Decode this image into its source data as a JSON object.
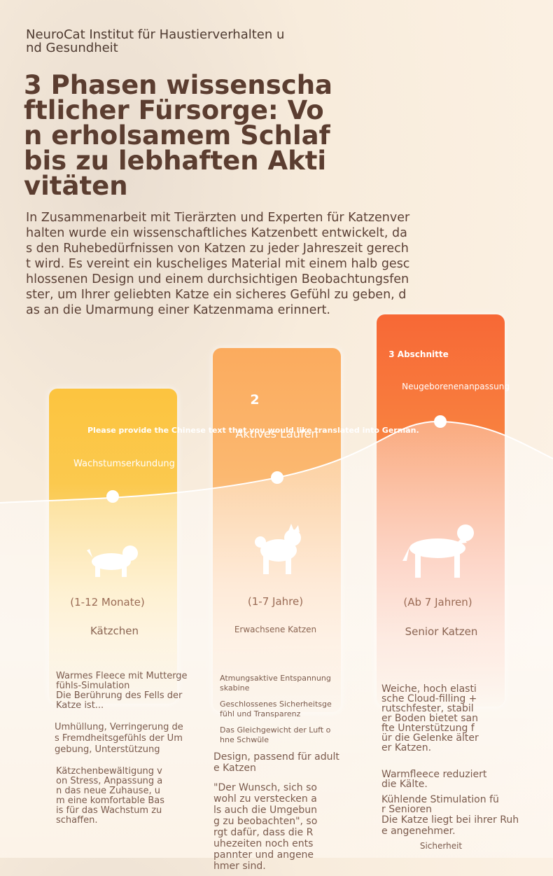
{
  "header": {
    "brand": "NeuroCat Institut für Haustierverhalten und Gesundheit",
    "title": "3 Phasen wissenschaftlicher Fürsorge: Von erholsamem Schlaf bis zu lebhaften Aktivitäten",
    "intro": "In Zusammenarbeit mit Tierärzten und Experten für Katzenverhalten wurde ein wissenschaftliches Katzenbett entwickelt, das den Ruhebedürfnissen von Katzen zu jeder Jahreszeit gerecht wird. Es vereint ein kuscheliges Material mit einem halb geschlossenen Design und einem durchsichtigen Beobachtungsfenster, um Ihrer geliebten Katze ein sicheres Gefühl zu geben, das an die Umarmung einer Katzenmama erinnert."
  },
  "banner": "Please provide the Chinese text that you would like translated into German.",
  "columns": [
    {
      "label": "Wachstumserkundung",
      "age": "(1-12 Monate)",
      "name": "Kätzchen",
      "details": [
        "Warmes Fleece mit Muttergefühls-Simulation",
        "Die Berührung des Fells der Katze ist...",
        "Umhüllung, Verringerung des Fremdheitsgefühls der Umgebung, Unterstützung",
        "Kätzchenbewältigung von Stress, Anpassung an das neue Zuhause, um eine komfortable Basis für das Wachstum zu schaffen."
      ]
    },
    {
      "number": "2",
      "label": "Aktives Laufen",
      "age": "(1-7 Jahre)",
      "name": "Erwachsene Katzen",
      "details": [
        "Atmungsaktive Entspannungskabine",
        "Geschlossenes Sicherheitsgefühl und Transparenz",
        "Das Gleichgewicht der Luft ohne Schwüle",
        "Design, passend für adulte Katzen",
        "\"Der Wunsch, sich so wohl zu verstecken als auch die Umgebung zu beobachten\", sorgt dafür, dass die Ruhezeiten noch entspannter und angenehmer sind."
      ]
    },
    {
      "number": "3 Abschnitte",
      "label": "Neugeborenenanpassung",
      "age": "(Ab 7 Jahren)",
      "name": "Senior Katzen",
      "details": [
        "Weiche, hoch elastische Cloud-filling + rutschfester, stabiler Boden bietet sanfte Unterstützung für die Gelenke älterer Katzen.",
        "Warmfleece reduziert die Kälte.",
        "Kühlende Stimulation für Senioren",
        "Die Katze liegt bei ihrer Ruhe angenehmer.",
        "Sicherheit"
      ]
    }
  ]
}
